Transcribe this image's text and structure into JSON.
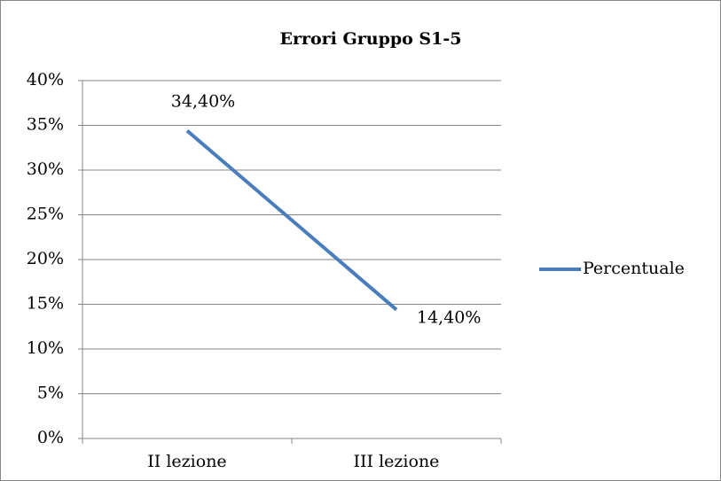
{
  "chart_data": {
    "type": "line",
    "title": "Errori Gruppo S1-5",
    "categories": [
      "II lezione",
      "III lezione"
    ],
    "series": [
      {
        "name": "Percentuale",
        "color": "#4a7ebb",
        "values": [
          34.4,
          14.4
        ],
        "value_labels": [
          "34,40%",
          "14,40%"
        ]
      }
    ],
    "ylim": [
      0,
      40
    ],
    "yticks": [
      {
        "value": 0,
        "label": "0%"
      },
      {
        "value": 5,
        "label": "5%"
      },
      {
        "value": 10,
        "label": "10%"
      },
      {
        "value": 15,
        "label": "15%"
      },
      {
        "value": 20,
        "label": "20%"
      },
      {
        "value": 25,
        "label": "25%"
      },
      {
        "value": 30,
        "label": "30%"
      },
      {
        "value": 35,
        "label": "35%"
      },
      {
        "value": 40,
        "label": "40%"
      }
    ],
    "grid": true,
    "legend": "right"
  }
}
